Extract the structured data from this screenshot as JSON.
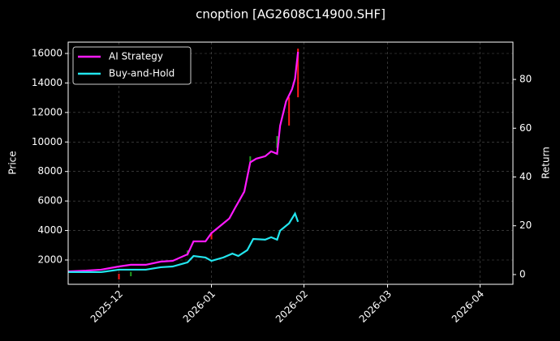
{
  "chart_data": {
    "type": "line",
    "title": "cnoption [AG2608C14900.SHF]",
    "y_label": "Price",
    "y2_label": "Return",
    "xlim": [
      "2025-11-14",
      "2026-04-12"
    ],
    "xticks": [
      {
        "value": "2025-12-01",
        "label": "2025-12"
      },
      {
        "value": "2026-01-01",
        "label": "2026-01"
      },
      {
        "value": "2026-02-01",
        "label": "2026-02"
      },
      {
        "value": "2026-03-01",
        "label": "2026-03"
      },
      {
        "value": "2026-04-01",
        "label": "2026-04"
      }
    ],
    "ylim": [
      353,
      16769
    ],
    "yticks": [
      2000,
      4000,
      6000,
      8000,
      10000,
      12000,
      14000,
      16000
    ],
    "y2lim": [
      -4,
      95.3
    ],
    "y2ticks": [
      0,
      20,
      40,
      60,
      80
    ],
    "grid": true,
    "legend": "upper left",
    "series": [
      {
        "name": "AI Strategy",
        "color": "#ff1aff",
        "axis": "y2",
        "x": [
          "2025-11-14",
          "2025-11-20",
          "2025-11-25",
          "2025-12-01",
          "2025-12-05",
          "2025-12-10",
          "2025-12-15",
          "2025-12-19",
          "2025-12-24",
          "2025-12-26",
          "2025-12-30",
          "2026-01-01",
          "2026-01-05",
          "2026-01-07",
          "2026-01-09",
          "2026-01-12",
          "2026-01-14",
          "2026-01-16",
          "2026-01-19",
          "2026-01-21",
          "2026-01-23",
          "2026-01-24",
          "2026-01-26",
          "2026-01-28",
          "2026-01-29",
          "2026-01-30"
        ],
        "values": [
          1.3,
          1.6,
          2,
          3.3,
          4,
          4,
          5.3,
          5.6,
          8.3,
          13.6,
          13.6,
          17,
          21,
          23,
          27.5,
          34,
          46,
          47.5,
          48.5,
          50.5,
          49.5,
          61,
          71,
          76,
          80.3,
          91.3
        ]
      },
      {
        "name": "Buy-and-Hold",
        "color": "#22e5ee",
        "axis": "y2",
        "x": [
          "2025-11-14",
          "2025-11-25",
          "2025-12-01",
          "2025-12-10",
          "2025-12-15",
          "2025-12-19",
          "2025-12-24",
          "2025-12-26",
          "2025-12-30",
          "2026-01-01",
          "2026-01-05",
          "2026-01-08",
          "2026-01-10",
          "2026-01-13",
          "2026-01-15",
          "2026-01-19",
          "2026-01-21",
          "2026-01-23",
          "2026-01-24",
          "2026-01-27",
          "2026-01-29",
          "2026-01-30"
        ],
        "values": [
          1,
          1,
          2,
          2,
          3,
          3.3,
          5,
          7.6,
          7,
          5.6,
          7,
          8.6,
          7.6,
          10,
          14.6,
          14.3,
          15.3,
          14.3,
          18,
          21,
          25,
          21.6
        ]
      }
    ],
    "candles": {
      "up_color": "#1f9e1f",
      "down_color": "#ff1a1a",
      "x": [
        "2025-12-01",
        "2025-12-05",
        "2025-12-24",
        "2026-01-01",
        "2026-01-14",
        "2026-01-23",
        "2026-01-27",
        "2026-01-30"
      ],
      "open": [
        1070,
        900,
        2300,
        3900,
        8640,
        9600,
        13030,
        16330
      ],
      "close": [
        680,
        1200,
        2650,
        3400,
        9030,
        10400,
        11110,
        13030
      ]
    }
  }
}
